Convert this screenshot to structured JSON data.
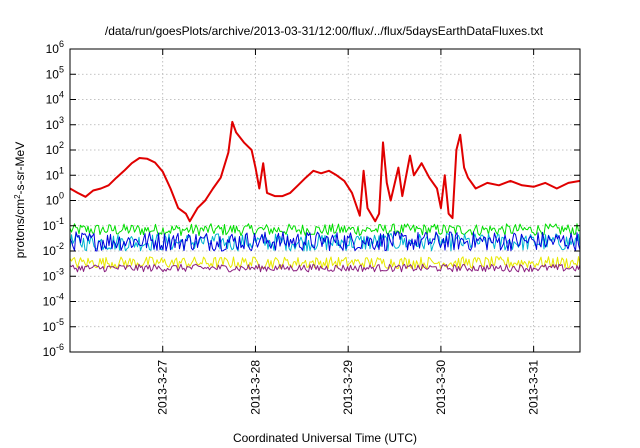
{
  "chart_data": {
    "type": "line",
    "title": "/data/run/goesPlots/archive/2013-03-31/12:00/flux/../flux/5daysEarthDataFluxes.txt",
    "xlabel": "Coordinated Universal Time (UTC)",
    "ylabel_parts": {
      "base": "protons/cm",
      "sup": "2",
      "rest": "-s-sr-MeV"
    },
    "y_scale": "log",
    "ylim": [
      1e-06,
      1000000.0
    ],
    "y_ticks": [
      {
        "value": 1e-06,
        "base": "10",
        "exp": "-6"
      },
      {
        "value": 1e-05,
        "base": "10",
        "exp": "-5"
      },
      {
        "value": 0.0001,
        "base": "10",
        "exp": "-4"
      },
      {
        "value": 0.001,
        "base": "10",
        "exp": "-3"
      },
      {
        "value": 0.01,
        "base": "10",
        "exp": "-2"
      },
      {
        "value": 0.1,
        "base": "10",
        "exp": "-1"
      },
      {
        "value": 1.0,
        "base": "10",
        "exp": "0"
      },
      {
        "value": 10.0,
        "base": "10",
        "exp": "1"
      },
      {
        "value": 100.0,
        "base": "10",
        "exp": "2"
      },
      {
        "value": 1000.0,
        "base": "10",
        "exp": "3"
      },
      {
        "value": 10000.0,
        "base": "10",
        "exp": "4"
      },
      {
        "value": 100000.0,
        "base": "10",
        "exp": "5"
      },
      {
        "value": 1000000.0,
        "base": "10",
        "exp": "6"
      }
    ],
    "xlim": [
      "2013-03-26T00:00",
      "2013-03-31T12:00"
    ],
    "x_ticks": [
      {
        "value": "2013-03-27T00:00",
        "label": "2013-3-27"
      },
      {
        "value": "2013-03-28T00:00",
        "label": "2013-3-28"
      },
      {
        "value": "2013-03-29T00:00",
        "label": "2013-3-29"
      },
      {
        "value": "2013-03-30T00:00",
        "label": "2013-3-30"
      },
      {
        "value": "2013-03-31T00:00",
        "label": "2013-3-31"
      }
    ],
    "grid": true,
    "legend": "none",
    "series": [
      {
        "color": "#e00000",
        "points": [
          [
            "2013-03-26T00:00",
            3.0
          ],
          [
            "2013-03-26T02:00",
            2.0
          ],
          [
            "2013-03-26T04:00",
            1.4
          ],
          [
            "2013-03-26T06:00",
            2.5
          ],
          [
            "2013-03-26T08:00",
            3.0
          ],
          [
            "2013-03-26T10:00",
            4.0
          ],
          [
            "2013-03-26T12:00",
            8.0
          ],
          [
            "2013-03-26T14:00",
            15
          ],
          [
            "2013-03-26T16:00",
            30
          ],
          [
            "2013-03-26T18:00",
            48
          ],
          [
            "2013-03-26T20:00",
            45
          ],
          [
            "2013-03-26T22:00",
            32
          ],
          [
            "2013-03-27T00:00",
            14
          ],
          [
            "2013-03-27T02:00",
            3.0
          ],
          [
            "2013-03-27T04:00",
            0.5
          ],
          [
            "2013-03-27T06:00",
            0.3
          ],
          [
            "2013-03-27T07:00",
            0.15
          ],
          [
            "2013-03-27T09:00",
            0.5
          ],
          [
            "2013-03-27T11:00",
            1.0
          ],
          [
            "2013-03-27T13:00",
            3.0
          ],
          [
            "2013-03-27T15:00",
            8.0
          ],
          [
            "2013-03-27T17:00",
            80
          ],
          [
            "2013-03-27T18:00",
            1300
          ],
          [
            "2013-03-27T19:00",
            500
          ],
          [
            "2013-03-27T21:00",
            200
          ],
          [
            "2013-03-27T23:00",
            100
          ],
          [
            "2013-03-28T00:00",
            20
          ],
          [
            "2013-03-28T01:00",
            3.0
          ],
          [
            "2013-03-28T02:00",
            30
          ],
          [
            "2013-03-28T03:00",
            2.0
          ],
          [
            "2013-03-28T05:00",
            1.5
          ],
          [
            "2013-03-28T07:00",
            1.5
          ],
          [
            "2013-03-28T09:00",
            2.0
          ],
          [
            "2013-03-28T11:00",
            4.0
          ],
          [
            "2013-03-28T13:00",
            8.0
          ],
          [
            "2013-03-28T15:00",
            15
          ],
          [
            "2013-03-28T17:00",
            12
          ],
          [
            "2013-03-28T19:00",
            15
          ],
          [
            "2013-03-28T21:00",
            10
          ],
          [
            "2013-03-28T23:00",
            6.0
          ],
          [
            "2013-03-29T01:00",
            2.0
          ],
          [
            "2013-03-29T03:00",
            0.25
          ],
          [
            "2013-03-29T04:00",
            15
          ],
          [
            "2013-03-29T05:00",
            0.5
          ],
          [
            "2013-03-29T07:00",
            0.15
          ],
          [
            "2013-03-29T08:00",
            0.3
          ],
          [
            "2013-03-29T09:00",
            200
          ],
          [
            "2013-03-29T10:00",
            5.0
          ],
          [
            "2013-03-29T11:00",
            1.0
          ],
          [
            "2013-03-29T13:00",
            20
          ],
          [
            "2013-03-29T14:00",
            1.5
          ],
          [
            "2013-03-29T16:00",
            60
          ],
          [
            "2013-03-29T17:00",
            10
          ],
          [
            "2013-03-29T19:00",
            30
          ],
          [
            "2013-03-29T21:00",
            8.0
          ],
          [
            "2013-03-29T23:00",
            3.0
          ],
          [
            "2013-03-30T00:00",
            0.5
          ],
          [
            "2013-03-30T01:00",
            10
          ],
          [
            "2013-03-30T02:00",
            0.3
          ],
          [
            "2013-03-30T03:00",
            0.2
          ],
          [
            "2013-03-30T04:00",
            100
          ],
          [
            "2013-03-30T05:00",
            400
          ],
          [
            "2013-03-30T06:00",
            20
          ],
          [
            "2013-03-30T07:00",
            8.0
          ],
          [
            "2013-03-30T09:00",
            3.0
          ],
          [
            "2013-03-30T12:00",
            5.0
          ],
          [
            "2013-03-30T15:00",
            4.0
          ],
          [
            "2013-03-30T18:00",
            6.0
          ],
          [
            "2013-03-30T21:00",
            4.0
          ],
          [
            "2013-03-31T00:00",
            3.5
          ],
          [
            "2013-03-31T03:00",
            5.0
          ],
          [
            "2013-03-31T06:00",
            3.0
          ],
          [
            "2013-03-31T09:00",
            5.0
          ],
          [
            "2013-03-31T12:00",
            6.0
          ]
        ]
      },
      {
        "color": "#00dd00",
        "band": [
          0.04,
          0.12
        ]
      },
      {
        "color": "#00b4d0",
        "band": [
          0.01,
          0.05
        ]
      },
      {
        "color": "#0000dd",
        "band": [
          0.01,
          0.06
        ]
      },
      {
        "color": "#e8e800",
        "band": [
          0.002,
          0.006
        ]
      },
      {
        "color": "#8b2080",
        "band": [
          0.0015,
          0.003
        ]
      }
    ]
  }
}
